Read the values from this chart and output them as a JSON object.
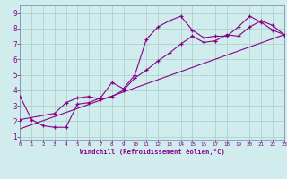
{
  "xlabel": "Windchill (Refroidissement éolien,°C)",
  "bg_color": "#d0ecec",
  "line_color": "#880088",
  "line1_x": [
    0,
    1,
    2,
    3,
    4,
    5,
    6,
    7,
    8,
    9,
    10,
    11,
    12,
    13,
    14,
    15,
    16,
    17,
    18,
    19,
    20,
    21,
    22,
    23
  ],
  "line1_y": [
    3.6,
    2.1,
    1.7,
    1.6,
    1.6,
    3.1,
    3.2,
    3.5,
    4.5,
    4.1,
    5.0,
    7.3,
    8.1,
    8.5,
    8.8,
    7.9,
    7.4,
    7.5,
    7.5,
    8.1,
    8.8,
    8.4,
    7.9,
    7.6
  ],
  "line2_x": [
    0,
    3,
    4,
    5,
    6,
    7,
    8,
    9,
    10,
    11,
    12,
    13,
    14,
    15,
    16,
    17,
    18,
    19,
    20,
    21,
    22,
    23
  ],
  "line2_y": [
    2.1,
    2.5,
    3.2,
    3.5,
    3.6,
    3.4,
    3.6,
    4.0,
    4.8,
    5.3,
    5.9,
    6.4,
    7.0,
    7.5,
    7.1,
    7.2,
    7.6,
    7.5,
    8.1,
    8.5,
    8.2,
    7.6
  ],
  "line3_x": [
    0,
    23
  ],
  "line3_y": [
    1.5,
    7.6
  ],
  "xlim": [
    0,
    23
  ],
  "ylim": [
    0.8,
    9.5
  ],
  "xticks": [
    0,
    1,
    2,
    3,
    4,
    5,
    6,
    7,
    8,
    9,
    10,
    11,
    12,
    13,
    14,
    15,
    16,
    17,
    18,
    19,
    20,
    21,
    22,
    23
  ],
  "yticks": [
    1,
    2,
    3,
    4,
    5,
    6,
    7,
    8,
    9
  ],
  "grid_color": "#aacccc",
  "spine_color": "#6688aa"
}
